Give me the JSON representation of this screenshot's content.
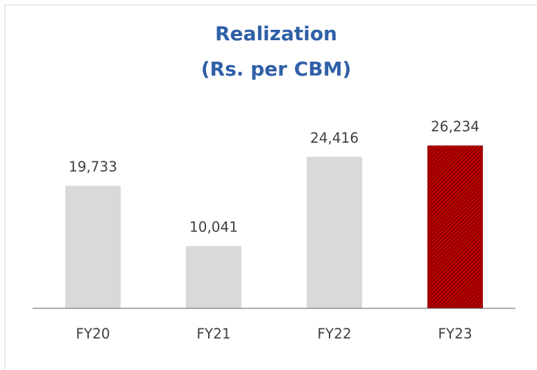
{
  "chart_data": {
    "type": "bar",
    "title": [
      "Realization",
      "(Rs. per CBM)"
    ],
    "categories": [
      "FY20",
      "FY21",
      "FY22",
      "FY23"
    ],
    "values": [
      19733,
      10041,
      24416,
      26234
    ],
    "value_labels": [
      "19,733",
      "10,041",
      "24,416",
      "26,234"
    ],
    "colors": [
      "#d9d9d9",
      "#d9d9d9",
      "#d9d9d9",
      "#c00000"
    ],
    "hatched": [
      false,
      false,
      false,
      true
    ]
  }
}
